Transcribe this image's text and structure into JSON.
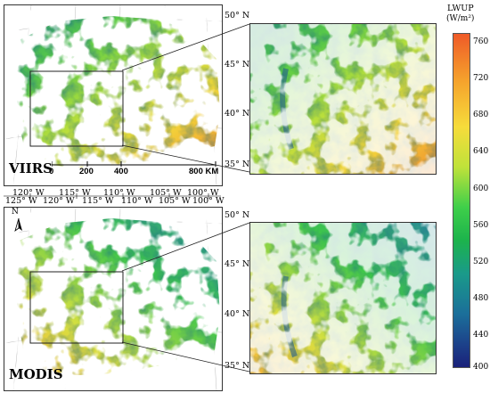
{
  "maps": [
    {
      "label": "VIIRS",
      "lat_labels": [
        "50° N",
        "45° N",
        "40° N",
        "35° N"
      ],
      "scale_bar": {
        "ticks": [
          "0",
          "200",
          "400",
          "800 KM"
        ]
      },
      "lon_labels_outer": [
        "120° W",
        "115° W",
        "110° W",
        "105° W",
        "100° W"
      ],
      "lon_labels_inner": [
        "125° W",
        "120° W",
        "115° W",
        "110° W",
        "105° W",
        "100° W"
      ]
    },
    {
      "label": "MODIS",
      "lat_labels": [
        "50° N",
        "45° N",
        "40° N",
        "35° N"
      ],
      "north_arrow": "N"
    }
  ],
  "legend": {
    "title": "LWUP",
    "unit": "(W/m²)",
    "ticks": [
      "760",
      "720",
      "680",
      "640",
      "600",
      "560",
      "520",
      "480",
      "440",
      "400"
    ],
    "colors": [
      "#f05a28",
      "#f39a2a",
      "#f7d23a",
      "#c9e23a",
      "#4bd04b",
      "#1db84a",
      "#1a9a8a",
      "#1b6f9a",
      "#1a3f8a",
      "#1a237e"
    ]
  },
  "colors": {
    "land_green": "#3ec64a",
    "land_yellow": "#f4e04a",
    "land_orange": "#f28a2e",
    "land_teal": "#2c9a9a",
    "land_blue": "#225d8e"
  }
}
